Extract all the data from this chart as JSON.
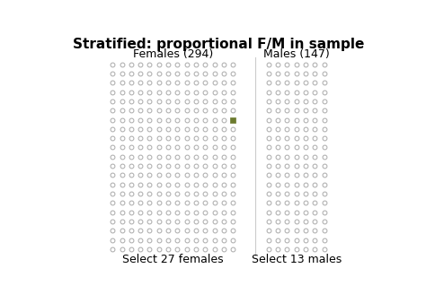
{
  "title": "Stratified: proportional F/M in sample",
  "female_label": "Females (294)",
  "male_label": "Males (147)",
  "female_select_label": "Select 27 females",
  "male_select_label": "Select 13 males",
  "female_cols": 14,
  "female_rows": 21,
  "male_cols": 7,
  "male_rows": 21,
  "circle_edge_color": "#aaaaaa",
  "filled_marker_color": "#6b7a2e",
  "filled_marker_row": 6,
  "filled_marker_col": 13,
  "bg_color": "#ffffff",
  "title_fontsize": 11,
  "label_fontsize": 9,
  "select_fontsize": 9
}
